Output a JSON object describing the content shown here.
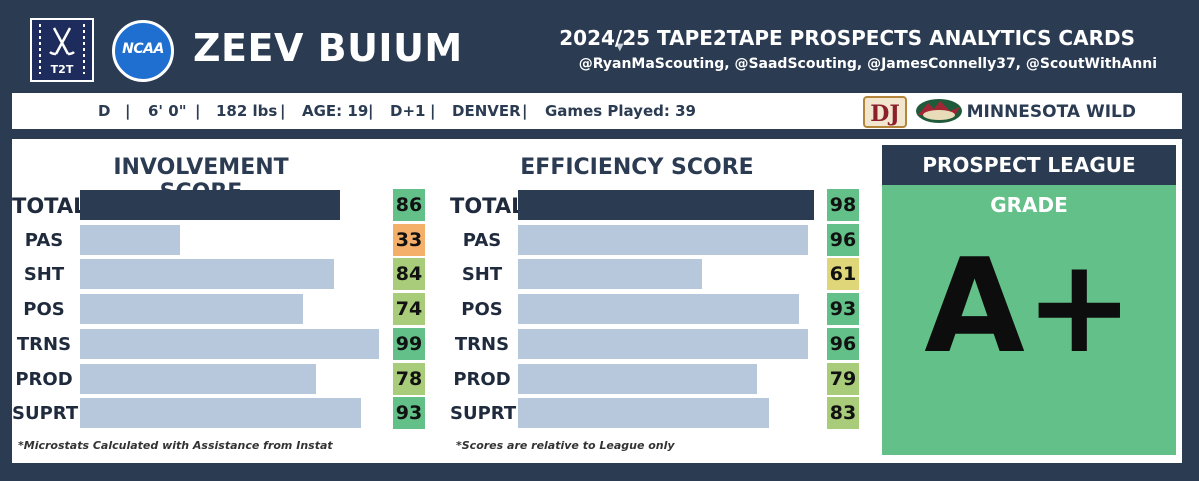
{
  "header": {
    "t2t_logo_text": "T2T",
    "ncaa_logo_text": "NCAA",
    "player_name": "ZEEV BUIUM",
    "card_title": "2024/25 TAPE2TAPE PROSPECTS ANALYTICS CARDS",
    "credits": "@RyanMaScouting, @SaadScouting, @JamesConnelly37, @ScoutWithAnni"
  },
  "info": {
    "position": "D",
    "height": "6' 0\"",
    "weight": "182 lbs",
    "age": "AGE: 19",
    "draft": "D+1",
    "school": "DENVER",
    "games_played": "Games Played: 39",
    "separator": "|",
    "dj_logo_text": "DJ",
    "team": "MINNESOTA WILD"
  },
  "colors": {
    "navy": "#2b3b52",
    "bar": "#b7c7dc",
    "green": "#62c088",
    "light_green": "#a8cc7a",
    "yellow": "#dfd67a",
    "orange": "#f4b06a"
  },
  "chart_data": [
    {
      "type": "bar",
      "title": "INVOLVEMENT SCORE",
      "categories": [
        "TOTAL",
        "PAS",
        "SHT",
        "POS",
        "TRNS",
        "PROD",
        "SUPRT"
      ],
      "values": [
        86,
        33,
        84,
        74,
        99,
        78,
        93
      ],
      "score_colors": [
        "#62c088",
        "#f4b06a",
        "#a8cc7a",
        "#a8cc7a",
        "#62c088",
        "#a8cc7a",
        "#62c088"
      ],
      "xlim": [
        0,
        100
      ],
      "footnote": "*Microstats Calculated with Assistance from Instat"
    },
    {
      "type": "bar",
      "title": "EFFICIENCY SCORE",
      "categories": [
        "TOTAL",
        "PAS",
        "SHT",
        "POS",
        "TRNS",
        "PROD",
        "SUPRT"
      ],
      "values": [
        98,
        96,
        61,
        93,
        96,
        79,
        83
      ],
      "score_colors": [
        "#62c088",
        "#62c088",
        "#dfd67a",
        "#62c088",
        "#62c088",
        "#a8cc7a",
        "#a8cc7a"
      ],
      "xlim": [
        0,
        100
      ],
      "footnote": "*Scores are relative to League only"
    }
  ],
  "grade": {
    "title": "PROSPECT LEAGUE GRADE",
    "value": "A+"
  }
}
